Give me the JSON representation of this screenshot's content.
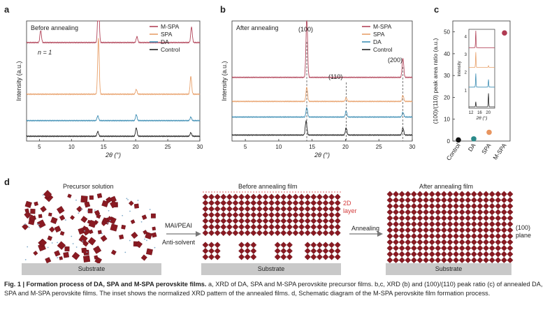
{
  "panels": {
    "a": {
      "letter": "a",
      "title": "Before annealing",
      "annotation": "n = 1"
    },
    "b": {
      "letter": "b",
      "title": "After annealing",
      "peaks": [
        "(100)",
        "(110)",
        "(200)"
      ]
    },
    "c": {
      "letter": "c",
      "ylabel": "(100)/(110) peak area ratio (a.u.)"
    },
    "d": {
      "letter": "d"
    }
  },
  "legend": [
    "M-SPA",
    "SPA",
    "DA",
    "Control"
  ],
  "colors": {
    "M-SPA": "#b2455a",
    "SPA": "#e8a06a",
    "DA": "#3f8fb5",
    "Control": "#222222",
    "crystal": "#8a1a22"
  },
  "chart_data": [
    {
      "type": "line",
      "title": "Before annealing",
      "xlabel": "2θ (°)",
      "ylabel": "Intensity (a.u.)",
      "xlim": [
        3,
        30
      ],
      "xticks": [
        "5",
        "10",
        "15",
        "20",
        "25",
        "30"
      ],
      "series": [
        {
          "name": "M-SPA",
          "baseline": 0.82,
          "peaks": [
            [
              5.2,
              0.1
            ],
            [
              14.2,
              0.4
            ],
            [
              20.2,
              0.05
            ],
            [
              28.7,
              0.13
            ]
          ]
        },
        {
          "name": "SPA",
          "baseline": 0.39,
          "peaks": [
            [
              14.2,
              0.47
            ],
            [
              20.1,
              0.04
            ],
            [
              28.6,
              0.15
            ]
          ]
        },
        {
          "name": "DA",
          "baseline": 0.17,
          "peaks": [
            [
              14.1,
              0.04
            ],
            [
              20.1,
              0.05
            ],
            [
              28.6,
              0.03
            ]
          ]
        },
        {
          "name": "Control",
          "baseline": 0.04,
          "peaks": [
            [
              14.1,
              0.04
            ],
            [
              20.1,
              0.07
            ],
            [
              28.6,
              0.03
            ]
          ]
        }
      ]
    },
    {
      "type": "line",
      "title": "After annealing",
      "xlabel": "2θ (°)",
      "ylabel": "Intensity (a.u.)",
      "xlim": [
        3,
        30
      ],
      "xticks": [
        "5",
        "10",
        "15",
        "20",
        "25",
        "30"
      ],
      "series": [
        {
          "name": "M-SPA",
          "baseline": 0.53,
          "peaks": [
            [
              14.2,
              0.5
            ],
            [
              28.6,
              0.16
            ]
          ]
        },
        {
          "name": "SPA",
          "baseline": 0.33,
          "peaks": [
            [
              14.2,
              0.12
            ],
            [
              20.1,
              0.03
            ],
            [
              28.6,
              0.05
            ]
          ]
        },
        {
          "name": "DA",
          "baseline": 0.2,
          "peaks": [
            [
              14.2,
              0.08
            ],
            [
              20.1,
              0.05
            ],
            [
              28.6,
              0.04
            ]
          ]
        },
        {
          "name": "Control",
          "baseline": 0.05,
          "peaks": [
            [
              14.1,
              0.12
            ],
            [
              20.1,
              0.06
            ],
            [
              28.6,
              0.06
            ]
          ]
        }
      ]
    },
    {
      "type": "scatter",
      "ylabel": "(100)/(110) peak area ratio (a.u.)",
      "categories": [
        "Control",
        "DA",
        "SPA",
        "M-SPA"
      ],
      "values": [
        0.5,
        1.0,
        4.0,
        49.5
      ],
      "ylim": [
        0,
        55
      ],
      "yticks": [
        "0",
        "10",
        "20",
        "30",
        "40",
        "50"
      ]
    },
    {
      "type": "line",
      "title": "inset",
      "xlabel": "2θ (°)",
      "ylabel": "Intensity",
      "xlim": [
        11,
        23
      ],
      "xticks": [
        "12",
        "16",
        "20"
      ],
      "yticks": [
        "1",
        "2",
        "3",
        "4"
      ],
      "series": [
        {
          "name": "M-SPA",
          "peaks": [
            [
              14.2,
              1.0
            ]
          ]
        },
        {
          "name": "SPA",
          "peaks": [
            [
              14.2,
              0.9
            ],
            [
              20.1,
              0.1
            ]
          ]
        },
        {
          "name": "DA",
          "peaks": [
            [
              14.2,
              0.8
            ],
            [
              20.1,
              0.45
            ]
          ]
        },
        {
          "name": "Control",
          "peaks": [
            [
              14.2,
              0.3
            ],
            [
              20.1,
              0.8
            ]
          ]
        }
      ]
    }
  ],
  "schematic": {
    "stage1": "Precursor solution",
    "stage2": "Before annealing film",
    "stage3": "After annealing film",
    "arrow1_top": "MAI/PEAI",
    "arrow1_bottom": "Anti-solvent",
    "arrow2": "Annealing",
    "layer_label": "2D\nlayer",
    "plane_label": "(100)\nplane",
    "substrate": "Substrate"
  },
  "caption": {
    "lead": "Fig. 1 | Formation process of DA, SPA and M-SPA perovskite films.",
    "body": " a, XRD of DA, SPA and M-SPA perovskite precursor films. b,c, XRD (b) and (100)/(110) peak ratio (c) of annealed DA, SPA and M-SPA perovskite films. The inset shows the normalized XRD pattern of the annealed films. d, Schematic diagram of the M-SPA perovskite film formation process."
  }
}
